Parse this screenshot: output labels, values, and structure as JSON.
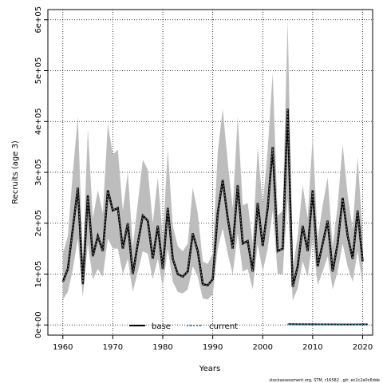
{
  "chart_data": {
    "type": "line",
    "xlabel": "Years",
    "ylabel": "Recruits (age 3)",
    "xlim": [
      1957,
      2022
    ],
    "ylim": [
      -20000,
      620000
    ],
    "x_ticks": [
      1960,
      1970,
      1980,
      1990,
      2000,
      2010,
      2020
    ],
    "y_ticks": [
      0,
      100000,
      200000,
      300000,
      400000,
      500000,
      600000
    ],
    "y_tick_labels": [
      "0e+00",
      "1e+05",
      "2e+05",
      "3e+05",
      "4e+05",
      "5e+05",
      "6e+05"
    ],
    "grid": true,
    "legend_position": "bottom",
    "series": [
      {
        "name": "base",
        "color": "#000000",
        "x": [
          1960,
          1961,
          1962,
          1963,
          1964,
          1965,
          1966,
          1967,
          1968,
          1969,
          1970,
          1971,
          1972,
          1973,
          1974,
          1975,
          1976,
          1977,
          1978,
          1979,
          1980,
          1981,
          1982,
          1983,
          1984,
          1985,
          1986,
          1987,
          1988,
          1989,
          1990,
          1991,
          1992,
          1993,
          1994,
          1995,
          1996,
          1997,
          1998,
          1999,
          2000,
          2001,
          2002,
          2003,
          2004,
          2005,
          2006,
          2007,
          2008,
          2009,
          2010,
          2011,
          2012,
          2013,
          2014,
          2015,
          2016,
          2017,
          2018,
          2019,
          2020,
          2021
        ],
        "values": [
          85000,
          110000,
          190000,
          270000,
          80000,
          255000,
          135000,
          175000,
          145000,
          265000,
          225000,
          230000,
          150000,
          200000,
          100000,
          160000,
          215000,
          205000,
          130000,
          195000,
          110000,
          230000,
          130000,
          100000,
          95000,
          105000,
          180000,
          145000,
          80000,
          78000,
          90000,
          220000,
          285000,
          210000,
          150000,
          275000,
          160000,
          165000,
          105000,
          240000,
          155000,
          230000,
          350000,
          145000,
          150000,
          425000,
          75000,
          115000,
          195000,
          145000,
          265000,
          115000,
          160000,
          205000,
          105000,
          160000,
          250000,
          175000,
          130000,
          225000,
          125000,
          null
        ],
        "lower": [
          50000,
          65000,
          110000,
          170000,
          55000,
          160000,
          90000,
          110000,
          95000,
          170000,
          150000,
          150000,
          100000,
          130000,
          65000,
          105000,
          145000,
          140000,
          90000,
          130000,
          75000,
          150000,
          85000,
          65000,
          62000,
          70000,
          115000,
          95000,
          52000,
          50000,
          60000,
          150000,
          190000,
          140000,
          100000,
          180000,
          105000,
          110000,
          70000,
          160000,
          105000,
          150000,
          225000,
          100000,
          100000,
          250000,
          48000,
          72000,
          125000,
          95000,
          170000,
          78000,
          105000,
          135000,
          70000,
          105000,
          160000,
          115000,
          85000,
          145000,
          80000,
          null
        ],
        "upper": [
          140000,
          175000,
          300000,
          410000,
          130000,
          385000,
          210000,
          265000,
          220000,
          395000,
          335000,
          345000,
          225000,
          300000,
          155000,
          240000,
          325000,
          305000,
          200000,
          290000,
          170000,
          345000,
          195000,
          155000,
          145000,
          160000,
          270000,
          220000,
          125000,
          120000,
          140000,
          340000,
          425000,
          320000,
          230000,
          410000,
          235000,
          240000,
          160000,
          350000,
          235000,
          345000,
          495000,
          215000,
          225000,
          600000,
          110000,
          175000,
          275000,
          210000,
          370000,
          170000,
          235000,
          290000,
          155000,
          235000,
          355000,
          255000,
          190000,
          330000,
          180000,
          null
        ]
      },
      {
        "name": "current",
        "color": "#3a8fb7",
        "x": [
          2005,
          2006,
          2007,
          2008,
          2009,
          2010,
          2011,
          2012,
          2013,
          2014,
          2015,
          2016,
          2017,
          2018,
          2019,
          2020,
          2021
        ],
        "values": [
          1500,
          1500,
          1400,
          1400,
          1300,
          1300,
          1200,
          1200,
          1100,
          1100,
          1000,
          1000,
          1000,
          1000,
          1000,
          1100,
          1200
        ]
      }
    ],
    "footer": "stockassessment.org, STM, r16582 , git: ec2c2a0c6dde"
  }
}
